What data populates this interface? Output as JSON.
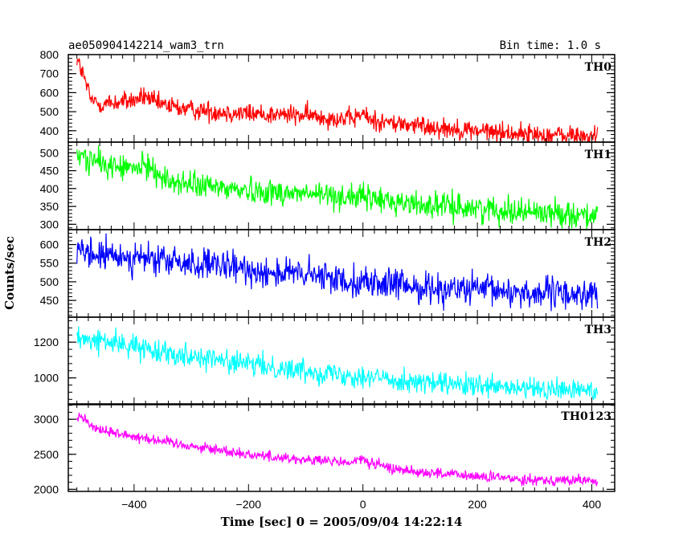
{
  "header": {
    "source_name": "ae050904142214_wam3_trn",
    "bin_time": "Bin time: 1.0 s"
  },
  "chart_data": {
    "type": "line",
    "title": "ae050904142214_wam3_trn",
    "xlabel": "Time [sec] 0 = 2005/09/04 14:22:14",
    "ylabel": "Counts/sec",
    "xlim": [
      -515,
      440
    ],
    "x_ticks": [
      -400,
      -200,
      0,
      200,
      400
    ],
    "x_tick_labels": [
      "−400",
      "−200",
      "0",
      "200",
      "400"
    ],
    "x_range": [
      -500,
      410
    ],
    "grid": false,
    "legend": "none",
    "panels": [
      {
        "name": "TH0",
        "color": "#ff0000",
        "ylim": [
          340,
          800
        ],
        "y_ticks": [
          400,
          500,
          600,
          700,
          800
        ],
        "anchors": [
          [
            -500,
            780
          ],
          [
            -490,
            700
          ],
          [
            -475,
            560
          ],
          [
            -460,
            540
          ],
          [
            -440,
            545
          ],
          [
            -400,
            560
          ],
          [
            -380,
            580
          ],
          [
            -360,
            540
          ],
          [
            -300,
            510
          ],
          [
            -200,
            490
          ],
          [
            -100,
            480
          ],
          [
            -20,
            460
          ],
          [
            0,
            490
          ],
          [
            10,
            460
          ],
          [
            50,
            440
          ],
          [
            100,
            425
          ],
          [
            200,
            400
          ],
          [
            300,
            380
          ],
          [
            410,
            370
          ]
        ],
        "noise": 38
      },
      {
        "name": "TH1",
        "color": "#00ff00",
        "ylim": [
          285,
          530
        ],
        "y_ticks": [
          300,
          350,
          400,
          450,
          500
        ],
        "anchors": [
          [
            -500,
            495
          ],
          [
            -450,
            465
          ],
          [
            -400,
            455
          ],
          [
            -370,
            465
          ],
          [
            -350,
            425
          ],
          [
            -300,
            410
          ],
          [
            -200,
            395
          ],
          [
            -100,
            385
          ],
          [
            0,
            375
          ],
          [
            100,
            355
          ],
          [
            200,
            345
          ],
          [
            300,
            335
          ],
          [
            410,
            325
          ]
        ],
        "noise": 26
      },
      {
        "name": "TH2",
        "color": "#0000ff",
        "ylim": [
          405,
          640
        ],
        "y_ticks": [
          450,
          500,
          550,
          600
        ],
        "anchors": [
          [
            -500,
            575
          ],
          [
            -400,
            565
          ],
          [
            -300,
            548
          ],
          [
            -200,
            532
          ],
          [
            -100,
            518
          ],
          [
            0,
            500
          ],
          [
            100,
            485
          ],
          [
            200,
            478
          ],
          [
            300,
            470
          ],
          [
            410,
            465
          ]
        ],
        "noise": 30
      },
      {
        "name": "TH3",
        "color": "#00ffff",
        "ylim": [
          850,
          1340
        ],
        "y_ticks": [
          1000,
          1200
        ],
        "anchors": [
          [
            -500,
            1215
          ],
          [
            -450,
            1205
          ],
          [
            -400,
            1175
          ],
          [
            -300,
            1125
          ],
          [
            -200,
            1075
          ],
          [
            -100,
            1040
          ],
          [
            0,
            1010
          ],
          [
            100,
            975
          ],
          [
            200,
            950
          ],
          [
            300,
            935
          ],
          [
            410,
            930
          ]
        ],
        "noise": 45
      },
      {
        "name": "TH0123",
        "color": "#ff00ff",
        "ylim": [
          1970,
          3220
        ],
        "y_ticks": [
          2000,
          2500,
          3000
        ],
        "anchors": [
          [
            -500,
            3020
          ],
          [
            -490,
            3060
          ],
          [
            -475,
            2900
          ],
          [
            -450,
            2830
          ],
          [
            -400,
            2760
          ],
          [
            -300,
            2620
          ],
          [
            -200,
            2500
          ],
          [
            -100,
            2420
          ],
          [
            -20,
            2380
          ],
          [
            0,
            2440
          ],
          [
            10,
            2380
          ],
          [
            50,
            2300
          ],
          [
            100,
            2250
          ],
          [
            200,
            2180
          ],
          [
            300,
            2140
          ],
          [
            410,
            2120
          ]
        ],
        "noise": 55
      }
    ]
  }
}
